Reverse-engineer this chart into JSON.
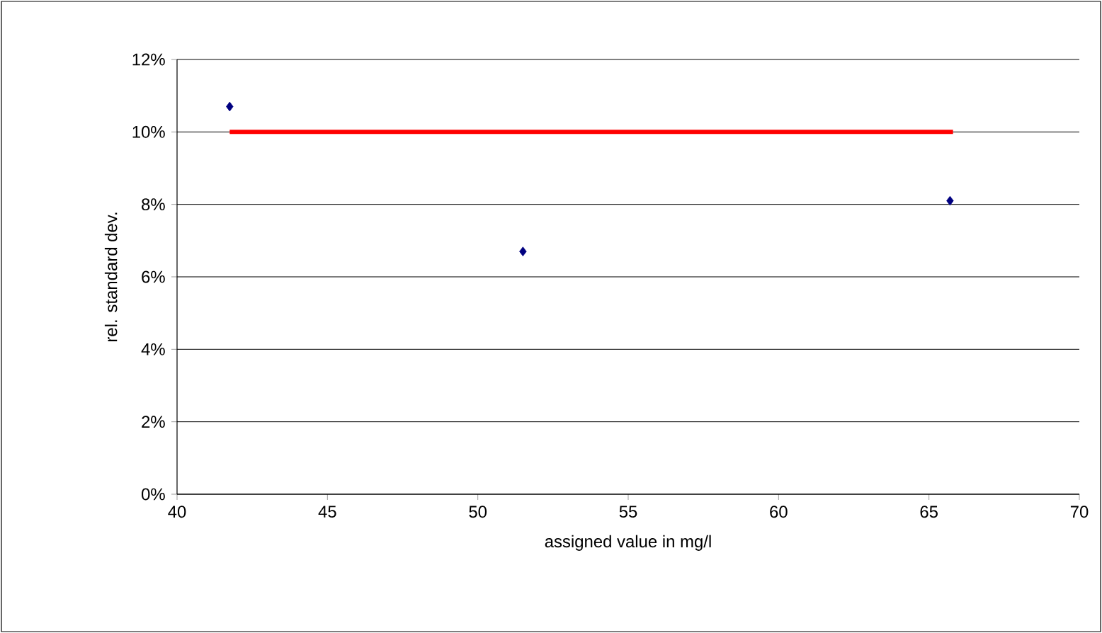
{
  "chart_data": {
    "type": "scatter",
    "xlabel": "assigned value in mg/l",
    "ylabel": "rel. standard dev.",
    "xlim": [
      40,
      70
    ],
    "xticks": [
      40,
      45,
      50,
      55,
      60,
      65,
      70
    ],
    "ylim": [
      0,
      12
    ],
    "yticks": [
      {
        "value": 0,
        "label": "0%"
      },
      {
        "value": 2,
        "label": "2%"
      },
      {
        "value": 4,
        "label": "4%"
      },
      {
        "value": 6,
        "label": "6%"
      },
      {
        "value": 8,
        "label": "8%"
      },
      {
        "value": 10,
        "label": "10%"
      },
      {
        "value": 12,
        "label": "12%"
      }
    ],
    "grid": "y",
    "marker": "diamond",
    "series": [
      {
        "color": "#000080",
        "x": [
          41.75,
          51.5,
          65.7
        ],
        "values": [
          10.7,
          6.7,
          8.1
        ]
      },
      {
        "type": "line",
        "color": "#ff0000",
        "marker": "none",
        "x": [
          41.75,
          65.8
        ],
        "values": [
          10,
          10
        ]
      }
    ]
  }
}
